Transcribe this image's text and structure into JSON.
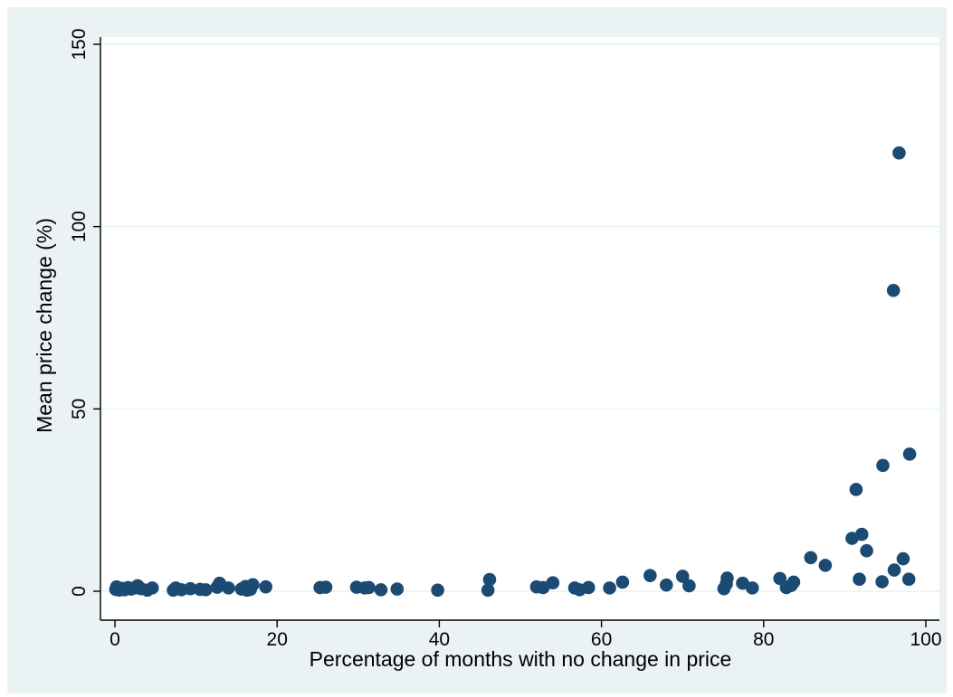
{
  "chart_data": {
    "type": "scatter",
    "title": "",
    "xlabel": "Percentage of months with no change in price",
    "ylabel": "Mean price change (%)",
    "xlim": [
      0,
      100
    ],
    "ylim": [
      0,
      150
    ],
    "xticks": [
      "0",
      "20",
      "40",
      "60",
      "80",
      "100"
    ],
    "yticks": [
      "0",
      "50",
      "100",
      "150"
    ],
    "grid": "horizontal",
    "legend": "none",
    "series": [
      {
        "points": [
          [
            0.1,
            0.5
          ],
          [
            0.2,
            1.2
          ],
          [
            0.5,
            0.3
          ],
          [
            0.8,
            0.8
          ],
          [
            1.2,
            0.4
          ],
          [
            1.6,
            1.0
          ],
          [
            2.0,
            0.6
          ],
          [
            2.4,
            0.9
          ],
          [
            2.8,
            1.5
          ],
          [
            3.2,
            0.7
          ],
          [
            4.0,
            0.3
          ],
          [
            4.6,
            0.9
          ],
          [
            7.2,
            0.3
          ],
          [
            7.5,
            0.9
          ],
          [
            8.2,
            0.4
          ],
          [
            9.3,
            0.7
          ],
          [
            10.5,
            0.5
          ],
          [
            11.2,
            0.4
          ],
          [
            12.6,
            1.1
          ],
          [
            12.9,
            2.2
          ],
          [
            14.0,
            0.9
          ],
          [
            15.6,
            0.6
          ],
          [
            16.1,
            1.3
          ],
          [
            16.3,
            0.3
          ],
          [
            16.7,
            0.5
          ],
          [
            17.0,
            1.8
          ],
          [
            18.6,
            1.2
          ],
          [
            25.3,
            1.0
          ],
          [
            26.0,
            1.1
          ],
          [
            29.8,
            1.1
          ],
          [
            30.8,
            0.9
          ],
          [
            31.3,
            1.0
          ],
          [
            32.8,
            0.4
          ],
          [
            34.8,
            0.6
          ],
          [
            39.8,
            0.3
          ],
          [
            46.0,
            0.3
          ],
          [
            46.2,
            3.2
          ],
          [
            52.0,
            1.2
          ],
          [
            52.8,
            1.0
          ],
          [
            54.0,
            2.3
          ],
          [
            56.7,
            0.9
          ],
          [
            57.3,
            0.4
          ],
          [
            58.4,
            1.0
          ],
          [
            61.0,
            0.9
          ],
          [
            62.6,
            2.5
          ],
          [
            66.0,
            4.3
          ],
          [
            68.0,
            1.7
          ],
          [
            70.0,
            4.1
          ],
          [
            70.8,
            1.5
          ],
          [
            75.1,
            0.7
          ],
          [
            75.4,
            2.0
          ],
          [
            75.5,
            3.6
          ],
          [
            77.4,
            2.2
          ],
          [
            78.6,
            0.9
          ],
          [
            82.0,
            3.5
          ],
          [
            82.8,
            1.0
          ],
          [
            83.4,
            1.6
          ],
          [
            83.7,
            2.5
          ],
          [
            85.8,
            9.2
          ],
          [
            87.6,
            7.1
          ],
          [
            90.9,
            14.5
          ],
          [
            91.4,
            27.9
          ],
          [
            91.8,
            3.3
          ],
          [
            92.1,
            15.6
          ],
          [
            92.7,
            11.1
          ],
          [
            94.6,
            2.6
          ],
          [
            94.7,
            34.5
          ],
          [
            96.0,
            82.5
          ],
          [
            96.1,
            5.8
          ],
          [
            96.7,
            120.2
          ],
          [
            97.2,
            8.9
          ],
          [
            97.9,
            3.3
          ],
          [
            98.0,
            37.6
          ]
        ]
      }
    ]
  },
  "colors": {
    "background": "#eaf2f3",
    "plot_area": "#ffffff",
    "marker": "#1b4a72",
    "gridline": "#eaf2f3",
    "axis": "#000000"
  }
}
